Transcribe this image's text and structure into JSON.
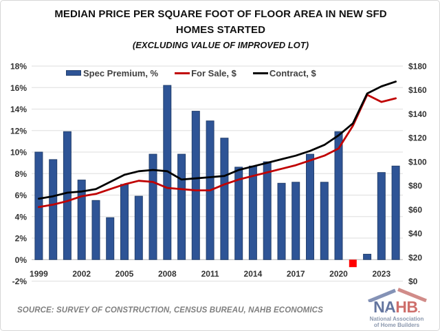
{
  "title": {
    "line1": "MEDIAN PRICE PER SQUARE FOOT OF FLOOR AREA IN NEW SFD",
    "line2": "HOMES STARTED",
    "line3": "(EXCLUDING VALUE OF IMPROVED LOT)"
  },
  "legend": [
    {
      "label": "Spec Premium, %",
      "swatch": "bar",
      "color": "#2e5496"
    },
    {
      "label": "For Sale, $",
      "swatch": "line",
      "color": "#c00000"
    },
    {
      "label": "Contract, $",
      "swatch": "line",
      "color": "#000000"
    }
  ],
  "source_note": "SOURCE: SURVEY OF CONSTRUCTION, CENSUS BUREAU, NAHB ECONOMICS",
  "logo": {
    "na": "NA",
    "hb": "HB",
    "dot": ".",
    "star": "★",
    "sub1": "National Association",
    "sub2": "of Home Builders"
  },
  "chart_data": {
    "type": "bar",
    "subtype": "combo-bar-line-dual-axis",
    "title": "Median price per square foot of floor area in new SFD homes started",
    "x": [
      1999,
      2000,
      2001,
      2002,
      2003,
      2004,
      2005,
      2006,
      2007,
      2008,
      2009,
      2010,
      2011,
      2012,
      2013,
      2014,
      2015,
      2016,
      2017,
      2018,
      2019,
      2020,
      2021,
      2022,
      2023,
      2024
    ],
    "x_tick_labels": [
      "1999",
      "2002",
      "2005",
      "2008",
      "2011",
      "2014",
      "2017",
      "2020",
      "2023"
    ],
    "series": [
      {
        "name": "Spec Premium, %",
        "type": "bar",
        "axis": "left",
        "color": "#2e5496",
        "border_color": "#24406d",
        "negative_color": "#ff0000",
        "values": [
          10.0,
          9.3,
          11.9,
          7.4,
          5.5,
          3.9,
          7.0,
          5.9,
          9.8,
          16.2,
          9.8,
          13.8,
          12.9,
          11.3,
          8.6,
          8.7,
          9.1,
          7.1,
          7.2,
          9.8,
          7.2,
          11.9,
          -0.7,
          0.5,
          8.1,
          8.7
        ]
      },
      {
        "name": "For Sale, $",
        "type": "line",
        "axis": "right",
        "color": "#c00000",
        "values": [
          62,
          64,
          67,
          71,
          73,
          77,
          81,
          84,
          83,
          78,
          77,
          76,
          76,
          81,
          85,
          88,
          91,
          94,
          97,
          101,
          105,
          111,
          130,
          156,
          150,
          153
        ]
      },
      {
        "name": "Contract, $",
        "type": "line",
        "axis": "right",
        "color": "#000000",
        "values": [
          69,
          71,
          74,
          75,
          77,
          83,
          89,
          92,
          93,
          92,
          85,
          86,
          87,
          88,
          93,
          96,
          99,
          102,
          105,
          109,
          114,
          122,
          132,
          157,
          163,
          167
        ]
      }
    ],
    "left_axis": {
      "min": -2,
      "max": 18,
      "step": 2,
      "format": "percent"
    },
    "right_axis": {
      "min": 0,
      "max": 180,
      "step": 20,
      "format": "dollar"
    },
    "grid": "horizontal",
    "legend_position": "top-inside"
  }
}
